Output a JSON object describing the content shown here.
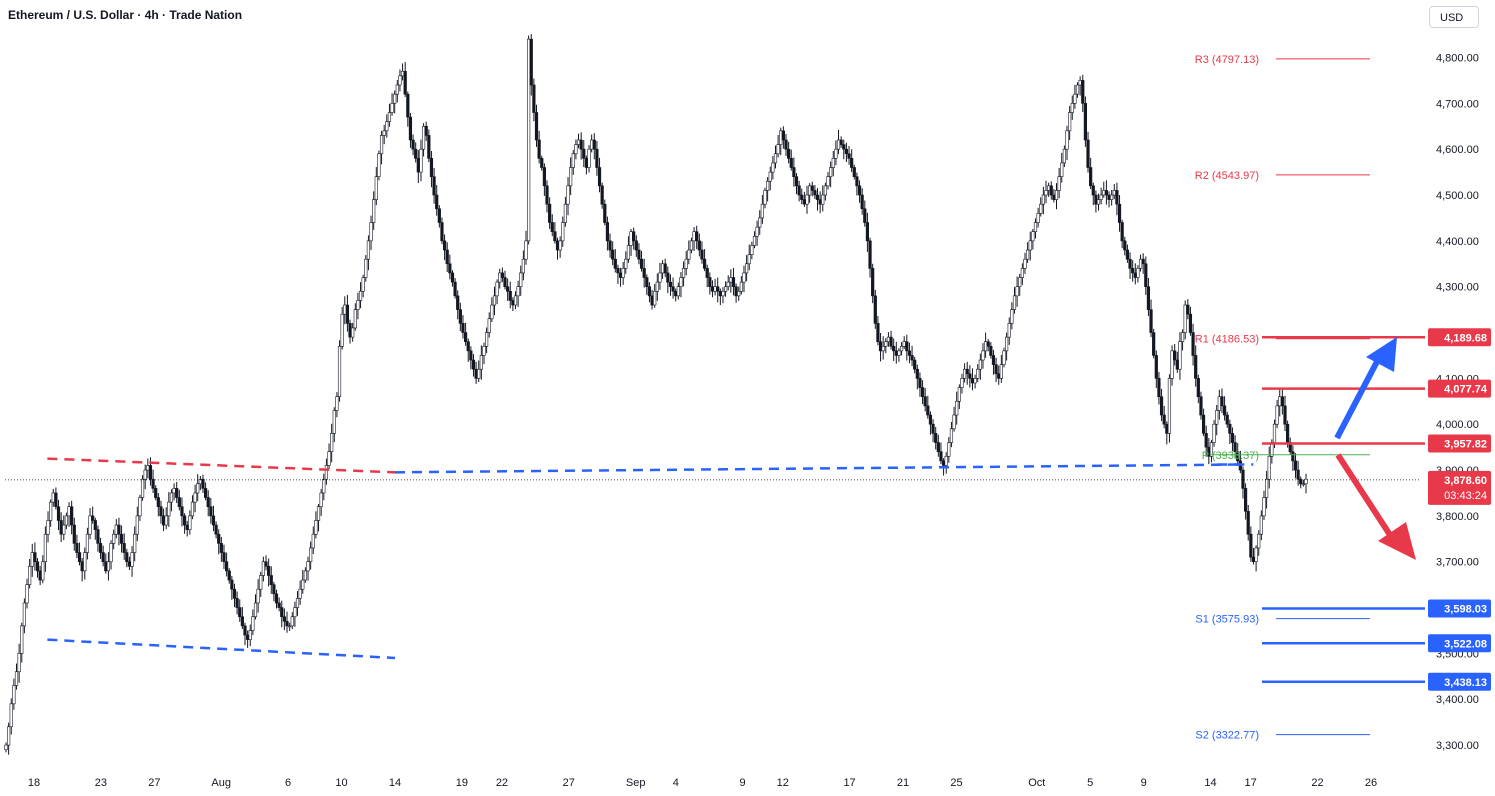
{
  "header": {
    "title": "Ethereum / U.S. Dollar · 4h · Trade Nation",
    "currency": "USD"
  },
  "colors": {
    "up": "#131722",
    "down": "#131722",
    "upFill": "#ffffff",
    "red": "#e8394a",
    "blue": "#2962ff",
    "pivot": "#4caf50",
    "grid": "#f0f3fa",
    "axisText": "#131722"
  },
  "chart_data": {
    "type": "candlestick",
    "title": "Ethereum / U.S. Dollar · 4h · Trade Nation",
    "ylim": [
      3250,
      4860
    ],
    "grid": false,
    "y_ticks": [
      "4,800.00",
      "4,700.00",
      "4,600.00",
      "4,500.00",
      "4,400.00",
      "4,300.00",
      "4,200.00",
      "4,100.00",
      "4,000.00",
      "3,900.00",
      "3,800.00",
      "3,700.00",
      "3,600.00",
      "3,500.00",
      "3,400.00",
      "3,300.00"
    ],
    "y_tick_values": [
      4800,
      4700,
      4600,
      4500,
      4400,
      4300,
      4200,
      4100,
      4000,
      3900,
      3800,
      3700,
      3600,
      3500,
      3400,
      3300
    ],
    "x_ticks": [
      "18",
      "23",
      "27",
      "Aug",
      "6",
      "10",
      "14",
      "19",
      "22",
      "27",
      "Sep",
      "4",
      "9",
      "12",
      "17",
      "21",
      "25",
      "Oct",
      "5",
      "9",
      "14",
      "17",
      "22",
      "26"
    ],
    "x_tick_days": [
      0,
      5,
      9,
      14,
      19,
      23,
      27,
      32,
      35,
      40,
      45,
      48,
      53,
      56,
      61,
      65,
      69,
      75,
      79,
      83,
      88,
      91,
      96,
      100
    ],
    "x_axis_start": "Jul 17",
    "price_close": [
      3300,
      3340,
      3390,
      3430,
      3460,
      3500,
      3560,
      3610,
      3650,
      3690,
      3720,
      3700,
      3680,
      3660,
      3700,
      3760,
      3790,
      3830,
      3850,
      3820,
      3790,
      3760,
      3780,
      3800,
      3820,
      3780,
      3740,
      3720,
      3700,
      3680,
      3720,
      3760,
      3800,
      3790,
      3770,
      3740,
      3720,
      3700,
      3680,
      3700,
      3740,
      3760,
      3780,
      3760,
      3740,
      3720,
      3700,
      3690,
      3720,
      3760,
      3800,
      3840,
      3880,
      3900,
      3910,
      3880,
      3860,
      3840,
      3820,
      3800,
      3780,
      3800,
      3830,
      3850,
      3860,
      3840,
      3820,
      3800,
      3780,
      3770,
      3800,
      3830,
      3850,
      3870,
      3880,
      3860,
      3840,
      3820,
      3800,
      3780,
      3760,
      3740,
      3720,
      3700,
      3680,
      3660,
      3640,
      3620,
      3600,
      3580,
      3560,
      3540,
      3530,
      3550,
      3580,
      3610,
      3640,
      3670,
      3700,
      3690,
      3670,
      3650,
      3630,
      3610,
      3600,
      3580,
      3570,
      3560,
      3560,
      3580,
      3600,
      3620,
      3640,
      3660,
      3680,
      3700,
      3730,
      3760,
      3790,
      3820,
      3850,
      3880,
      3910,
      3940,
      3980,
      4030,
      4060,
      4170,
      4240,
      4260,
      4220,
      4190,
      4210,
      4250,
      4270,
      4290,
      4320,
      4360,
      4400,
      4440,
      4490,
      4540,
      4590,
      4630,
      4640,
      4660,
      4680,
      4700,
      4720,
      4740,
      4760,
      4770,
      4720,
      4670,
      4620,
      4600,
      4580,
      4550,
      4600,
      4650,
      4630,
      4580,
      4540,
      4500,
      4470,
      4440,
      4400,
      4380,
      4350,
      4330,
      4310,
      4280,
      4250,
      4220,
      4200,
      4180,
      4160,
      4140,
      4120,
      4100,
      4120,
      4150,
      4170,
      4200,
      4230,
      4260,
      4280,
      4310,
      4330,
      4320,
      4300,
      4290,
      4270,
      4260,
      4280,
      4300,
      4330,
      4360,
      4400,
      4840,
      4740,
      4680,
      4620,
      4580,
      4560,
      4520,
      4480,
      4440,
      4420,
      4400,
      4380,
      4400,
      4440,
      4480,
      4520,
      4560,
      4590,
      4610,
      4620,
      4600,
      4580,
      4560,
      4600,
      4620,
      4600,
      4560,
      4520,
      4480,
      4440,
      4400,
      4380,
      4360,
      4340,
      4330,
      4320,
      4340,
      4360,
      4390,
      4420,
      4400,
      4380,
      4360,
      4340,
      4320,
      4300,
      4280,
      4260,
      4290,
      4310,
      4330,
      4350,
      4330,
      4310,
      4300,
      4290,
      4280,
      4300,
      4320,
      4340,
      4360,
      4380,
      4400,
      4420,
      4400,
      4380,
      4360,
      4340,
      4320,
      4300,
      4290,
      4300,
      4290,
      4280,
      4290,
      4300,
      4310,
      4320,
      4300,
      4280,
      4290,
      4310,
      4330,
      4350,
      4370,
      4390,
      4410,
      4430,
      4450,
      4480,
      4510,
      4530,
      4550,
      4570,
      4590,
      4610,
      4640,
      4620,
      4600,
      4580,
      4560,
      4540,
      4520,
      4500,
      4490,
      4480,
      4500,
      4520,
      4510,
      4500,
      4490,
      4480,
      4500,
      4520,
      4540,
      4560,
      4580,
      4600,
      4620,
      4610,
      4600,
      4590,
      4580,
      4560,
      4540,
      4520,
      4500,
      4470,
      4440,
      4400,
      4340,
      4280,
      4220,
      4180,
      4160,
      4170,
      4180,
      4190,
      4170,
      4160,
      4150,
      4160,
      4170,
      4180,
      4160,
      4150,
      4140,
      4120,
      4100,
      4080,
      4060,
      4040,
      4020,
      4000,
      3980,
      3960,
      3940,
      3920,
      3910,
      3930,
      3960,
      3990,
      4020,
      4050,
      4080,
      4100,
      4120,
      4110,
      4100,
      4090,
      4100,
      4120,
      4140,
      4160,
      4180,
      4170,
      4150,
      4130,
      4110,
      4100,
      4130,
      4160,
      4190,
      4220,
      4250,
      4280,
      4300,
      4320,
      4340,
      4360,
      4380,
      4400,
      4420,
      4440,
      4460,
      4480,
      4500,
      4510,
      4520,
      4500,
      4490,
      4510,
      4540,
      4570,
      4600,
      4640,
      4680,
      4700,
      4720,
      4740,
      4750,
      4700,
      4620,
      4560,
      4520,
      4500,
      4480,
      4490,
      4500,
      4510,
      4500,
      4490,
      4500,
      4510,
      4480,
      4440,
      4400,
      4380,
      4360,
      4340,
      4330,
      4320,
      4340,
      4360,
      4350,
      4300,
      4250,
      4200,
      4150,
      4100,
      4060,
      4020,
      4000,
      3980,
      4100,
      4160,
      4140,
      4120,
      4180,
      4200,
      4260,
      4240,
      4200,
      4150,
      4100,
      4060,
      4020,
      3980,
      3950,
      3930,
      3960,
      4000,
      4030,
      4060,
      4040,
      4020,
      4000,
      3980,
      3960,
      3940,
      3920,
      3900,
      3860,
      3810,
      3760,
      3710,
      3700,
      3730,
      3760,
      3800,
      3840,
      3880,
      3930,
      3960,
      4000,
      4040,
      4060,
      4040,
      4000,
      3960,
      3940,
      3920,
      3900,
      3880,
      3870,
      3870,
      3880
    ],
    "series": [
      {
        "name": "R3",
        "value": 4797.13,
        "label": "R3 (4797.13)"
      },
      {
        "name": "R2",
        "value": 4543.97,
        "label": "R2 (4543.97)"
      },
      {
        "name": "R1",
        "value": 4186.53,
        "label": "R1 (4186.53)"
      },
      {
        "name": "P",
        "value": 3933.37,
        "label": "P (3933.37)"
      },
      {
        "name": "S1",
        "value": 3575.93,
        "label": "S1 (3575.93)"
      },
      {
        "name": "S2",
        "value": 3322.77,
        "label": "S2 (3322.77)"
      }
    ],
    "price_levels": [
      {
        "value": 4189.68,
        "label": "4,189.68",
        "color": "red"
      },
      {
        "value": 4077.74,
        "label": "4,077.74",
        "color": "red"
      },
      {
        "value": 3957.82,
        "label": "3,957.82",
        "color": "red"
      },
      {
        "value": 3598.03,
        "label": "3,598.03",
        "color": "blue"
      },
      {
        "value": 3522.08,
        "label": "3,522.08",
        "color": "blue"
      },
      {
        "value": 3438.13,
        "label": "3,438.13",
        "color": "blue"
      }
    ],
    "last_price": {
      "value": 3878.6,
      "label": "3,878.60",
      "countdown": "03:43:24"
    },
    "trendlines": [
      {
        "name": "upper-channel-red",
        "color": "red",
        "from": [
          1,
          3925
        ],
        "to": [
          27,
          3895
        ]
      },
      {
        "name": "lower-channel-blue",
        "color": "blue",
        "from": [
          1,
          3530
        ],
        "to": [
          27,
          3490
        ]
      },
      {
        "name": "support-blue-dashed",
        "color": "blue",
        "from": [
          27,
          3895
        ],
        "to": [
          90,
          3912
        ]
      }
    ],
    "arrows": [
      {
        "name": "bullish-arrow",
        "color": "blue",
        "direction": "up"
      },
      {
        "name": "bearish-arrow",
        "color": "red",
        "direction": "down"
      }
    ]
  }
}
